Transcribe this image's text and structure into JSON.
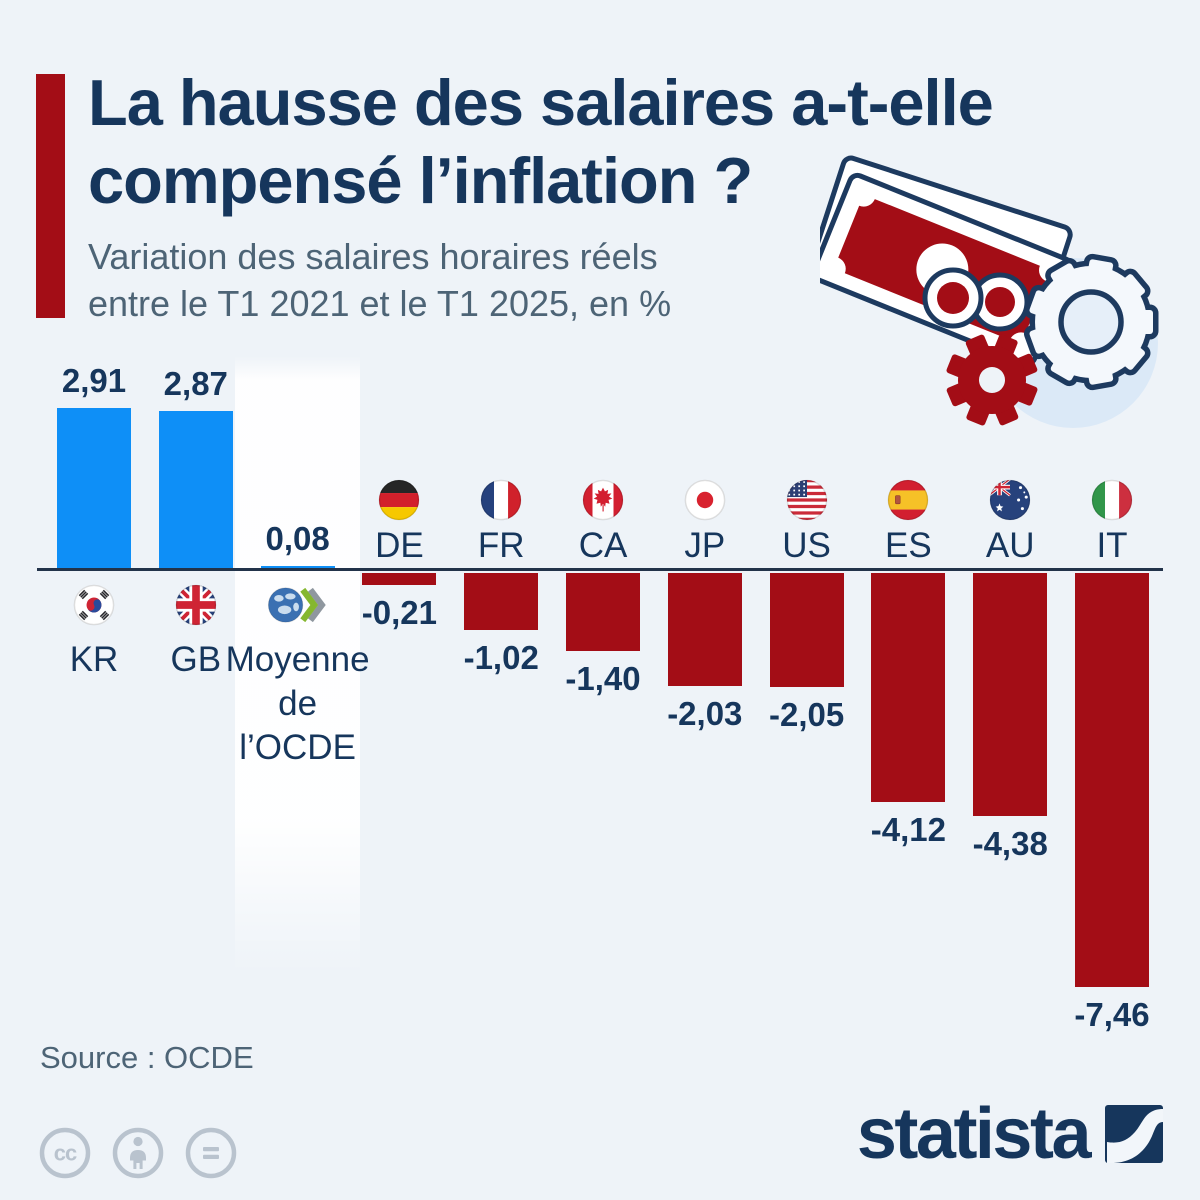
{
  "header": {
    "title_line1": "La hausse des salaires a-t-elle",
    "title_line2": "compensé l’inflation ?",
    "subtitle_line1": "Variation des salaires horaires réels",
    "subtitle_line2": "entre le T1 2021 et le T1 2025, en %"
  },
  "chart_data": {
    "type": "bar",
    "title": "La hausse des salaires a-t-elle compensé l’inflation ?",
    "subtitle": "Variation des salaires horaires réels entre le T1 2021 et le T1 2025, en %",
    "unit": "%",
    "ylim": [
      -8,
      3.2
    ],
    "grid": false,
    "legend": "none",
    "categories": [
      "KR",
      "GB",
      "Moyenne de l’OCDE",
      "DE",
      "FR",
      "CA",
      "JP",
      "US",
      "ES",
      "AU",
      "IT"
    ],
    "values": [
      2.91,
      2.87,
      0.08,
      -0.21,
      -1.02,
      -1.4,
      -2.03,
      -2.05,
      -4.12,
      -4.38,
      -7.46
    ],
    "points": [
      {
        "code": "KR",
        "label": "KR",
        "value": 2.91,
        "value_label": "2,91",
        "bar_color": "blue",
        "flag": "south-korea"
      },
      {
        "code": "GB",
        "label": "GB",
        "value": 2.87,
        "value_label": "2,87",
        "bar_color": "blue",
        "flag": "united-kingdom"
      },
      {
        "code": "OCDE",
        "label": "Moyenne de l’OCDE",
        "label_lines": [
          "Moyenne",
          "de",
          "l’OCDE"
        ],
        "value": 0.08,
        "value_label": "0,08",
        "bar_color": "blue",
        "flag": "oecd-logo",
        "highlighted": true
      },
      {
        "code": "DE",
        "label": "DE",
        "value": -0.21,
        "value_label": "-0,21",
        "bar_color": "red",
        "flag": "germany"
      },
      {
        "code": "FR",
        "label": "FR",
        "value": -1.02,
        "value_label": "-1,02",
        "bar_color": "red",
        "flag": "france"
      },
      {
        "code": "CA",
        "label": "CA",
        "value": -1.4,
        "value_label": "-1,40",
        "bar_color": "red",
        "flag": "canada"
      },
      {
        "code": "JP",
        "label": "JP",
        "value": -2.03,
        "value_label": "-2,03",
        "bar_color": "red",
        "flag": "japan"
      },
      {
        "code": "US",
        "label": "US",
        "value": -2.05,
        "value_label": "-2,05",
        "bar_color": "red",
        "flag": "united-states"
      },
      {
        "code": "ES",
        "label": "ES",
        "value": -4.12,
        "value_label": "-4,12",
        "bar_color": "red",
        "flag": "spain"
      },
      {
        "code": "AU",
        "label": "AU",
        "value": -4.38,
        "value_label": "-4,38",
        "bar_color": "red",
        "flag": "australia"
      },
      {
        "code": "IT",
        "label": "IT",
        "value": -7.46,
        "value_label": "-7,46",
        "bar_color": "red",
        "flag": "italy"
      }
    ]
  },
  "colors": {
    "background": "#eef3f8",
    "positive_bar": "#0e8ff7",
    "negative_bar": "#a30d16",
    "accent_red": "#a30d16",
    "title_navy": "#16365c",
    "subtitle_gray": "#4d6476",
    "baseline": "#22334a"
  },
  "footer": {
    "source": "Source : OCDE",
    "brand": "statista",
    "license": [
      "cc",
      "by",
      "nd"
    ]
  }
}
